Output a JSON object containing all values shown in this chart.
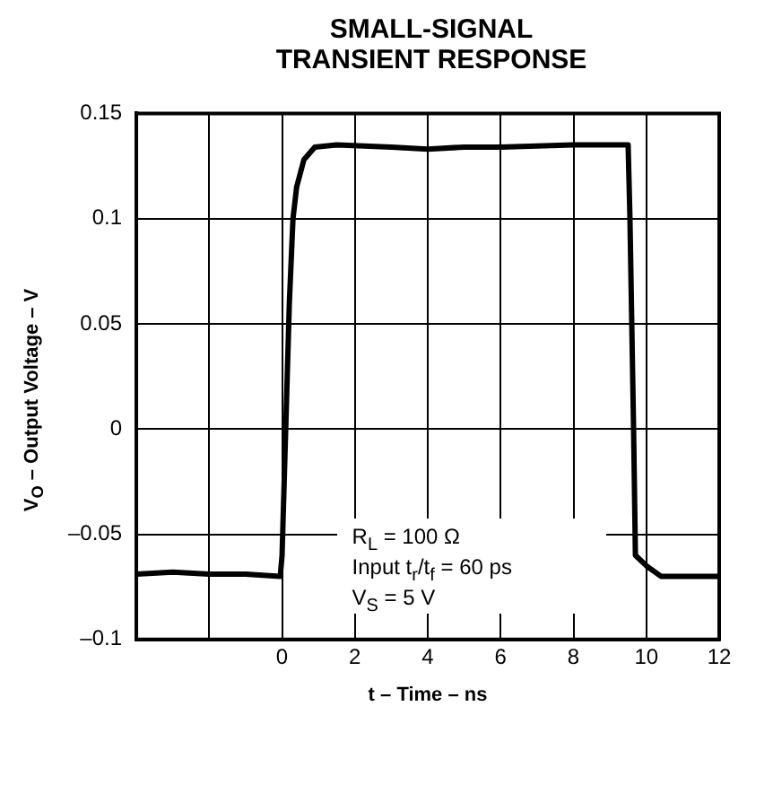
{
  "chart_data": {
    "type": "line",
    "title": "SMALL-SIGNAL TRANSIENT RESPONSE",
    "xlabel": "t – Time – ns",
    "ylabel": "V$_{O}$ – Output Voltage – V",
    "annotations": [
      "R$_{L}$ = 100 Ω",
      "Input t$_{r}$/t$_{f}$ = 60 ps",
      "V$_{S}$ = 5 V"
    ],
    "x": [
      -4,
      -3,
      -2,
      -1,
      -0.05,
      0,
      0.1,
      0.2,
      0.3,
      0.4,
      0.6,
      0.9,
      1.5,
      3,
      4,
      5,
      6,
      8,
      9.5,
      9.55,
      9.65,
      9.7,
      10,
      10.4,
      11,
      12
    ],
    "series": [
      {
        "color": "#000000",
        "values": [
          -0.069,
          -0.068,
          -0.069,
          -0.069,
          -0.07,
          -0.06,
          0,
          0.06,
          0.1,
          0.115,
          0.128,
          0.134,
          0.135,
          0.134,
          0.133,
          0.134,
          0.134,
          0.135,
          0.135,
          0.1,
          0,
          -0.06,
          -0.065,
          -0.07,
          -0.07,
          -0.07
        ]
      }
    ],
    "xlim": [
      -4,
      12
    ],
    "xticks": [
      {
        "value": -4,
        "label": null
      },
      {
        "value": -2,
        "label": null
      },
      0,
      2,
      4,
      6,
      8,
      10,
      12
    ],
    "ylim": [
      -0.1,
      0.15
    ],
    "yticks": [
      {
        "value": -0.1,
        "label": "–0.1"
      },
      {
        "value": -0.05,
        "label": "–0.05"
      },
      0,
      0.05,
      0.1,
      0.15
    ],
    "grid": true,
    "legend": false,
    "marker": "none",
    "line_style": "solid"
  }
}
